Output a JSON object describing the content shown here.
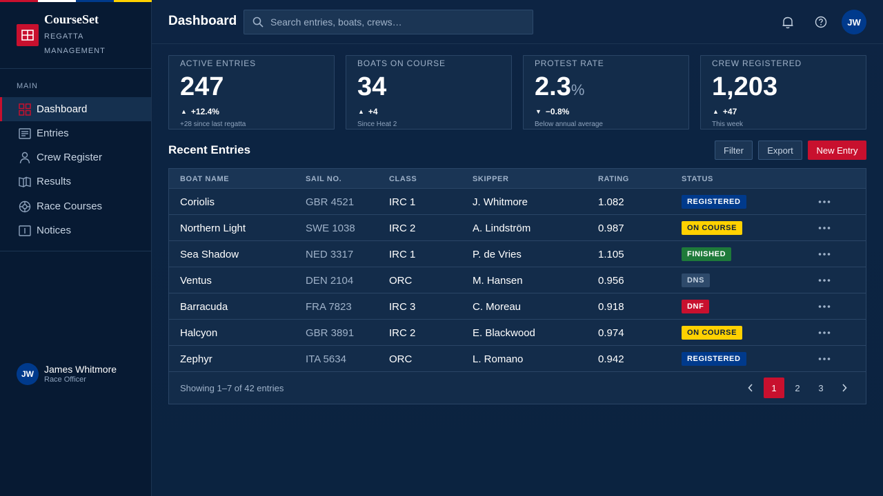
{
  "colors": {
    "accent": "#c8102e",
    "navy": "#003a8c",
    "flag": [
      "#c8102e",
      "#ffffff",
      "#003a8c",
      "#ffd100"
    ]
  },
  "brand": {
    "name": "CourseSet",
    "tagline": "REGATTA MANAGEMENT",
    "logo_icon": "grid-window-icon"
  },
  "sidebar": {
    "section_label": "MAIN",
    "items": [
      {
        "label": "Dashboard",
        "icon": "dashboard-grid-icon",
        "active": true
      },
      {
        "label": "Entries",
        "icon": "list-document-icon",
        "active": false
      },
      {
        "label": "Crew Register",
        "icon": "person-icon",
        "active": false
      },
      {
        "label": "Results",
        "icon": "open-book-icon",
        "active": false
      },
      {
        "label": "Race Courses",
        "icon": "compass-buoy-icon",
        "active": false
      },
      {
        "label": "Notices",
        "icon": "notice-board-icon",
        "active": false
      }
    ],
    "user": {
      "initials": "JW",
      "name": "James Whitmore",
      "role": "Race Officer"
    }
  },
  "header": {
    "title": "Dashboard",
    "search_placeholder": "Search entries, boats, crews…",
    "avatar_initials": "JW",
    "icons": [
      "bell-icon",
      "help-circle-icon"
    ]
  },
  "stats": [
    {
      "label": "ACTIVE ENTRIES",
      "value": "247",
      "unit": "",
      "delta": "+12.4%",
      "direction": "up",
      "sub": "+28 since last regatta"
    },
    {
      "label": "BOATS ON COURSE",
      "value": "34",
      "unit": "",
      "delta": "+4",
      "direction": "up",
      "sub": "Since Heat 2"
    },
    {
      "label": "PROTEST RATE",
      "value": "2.3",
      "unit": "%",
      "delta": "−0.8%",
      "direction": "down",
      "sub": "Below annual average"
    },
    {
      "label": "CREW REGISTERED",
      "value": "1,203",
      "unit": "",
      "delta": "+47",
      "direction": "up",
      "sub": "This week"
    }
  ],
  "recent": {
    "title": "Recent Entries",
    "buttons": {
      "filter": "Filter",
      "export": "Export",
      "new": "New Entry"
    },
    "columns": [
      "BOAT NAME",
      "SAIL NO.",
      "CLASS",
      "SKIPPER",
      "RATING",
      "STATUS"
    ],
    "rows": [
      {
        "boat": "Coriolis",
        "sail": "GBR 4521",
        "class": "IRC 1",
        "skipper": "J. Whitmore",
        "rating": "1.082",
        "status": "REGISTERED"
      },
      {
        "boat": "Northern Light",
        "sail": "SWE 1038",
        "class": "IRC 2",
        "skipper": "A. Lindström",
        "rating": "0.987",
        "status": "ON COURSE"
      },
      {
        "boat": "Sea Shadow",
        "sail": "NED 3317",
        "class": "IRC 1",
        "skipper": "P. de Vries",
        "rating": "1.105",
        "status": "FINISHED"
      },
      {
        "boat": "Ventus",
        "sail": "DEN 2104",
        "class": "ORC",
        "skipper": "M. Hansen",
        "rating": "0.956",
        "status": "DNS"
      },
      {
        "boat": "Barracuda",
        "sail": "FRA 7823",
        "class": "IRC 3",
        "skipper": "C. Moreau",
        "rating": "0.918",
        "status": "DNF"
      },
      {
        "boat": "Halcyon",
        "sail": "GBR 3891",
        "class": "IRC 2",
        "skipper": "E. Blackwood",
        "rating": "0.974",
        "status": "ON COURSE"
      },
      {
        "boat": "Zephyr",
        "sail": "ITA 5634",
        "class": "ORC",
        "skipper": "L. Romano",
        "rating": "0.942",
        "status": "REGISTERED"
      }
    ],
    "status_colors": {
      "REGISTERED": {
        "bg": "#003a8c",
        "fg": "#ffffff"
      },
      "ON COURSE": {
        "bg": "#ffd100",
        "fg": "#0b1f3a"
      },
      "FINISHED": {
        "bg": "#1e7a3a",
        "fg": "#ffffff"
      },
      "DNS": {
        "bg": "#2e4a6b",
        "fg": "#c6d3e2"
      },
      "DNF": {
        "bg": "#c8102e",
        "fg": "#ffffff"
      }
    },
    "footer": "Showing 1–7 of 42 entries",
    "pages": [
      "1",
      "2",
      "3"
    ],
    "current_page": "1"
  }
}
